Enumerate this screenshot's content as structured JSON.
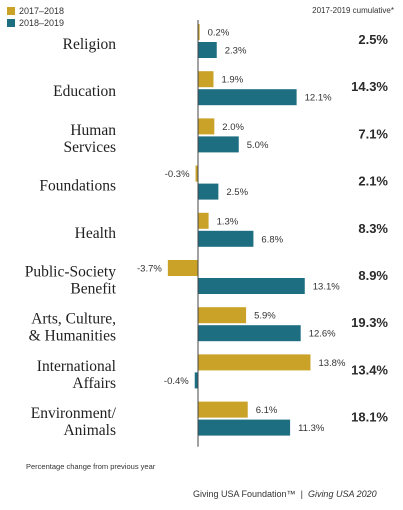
{
  "legend": [
    {
      "label": "2017–2018",
      "color": "#c9a227"
    },
    {
      "label": "2018–2019",
      "color": "#1e6e82"
    }
  ],
  "cumulative_header": "2017-2019 cumulative*",
  "footnote": "Percentage change from previous year",
  "source": {
    "org": "Giving USA Foundation™",
    "separator": "|",
    "publication": "Giving USA 2020"
  },
  "chart_data": {
    "type": "bar",
    "orientation": "horizontal",
    "categories": [
      [
        "Religion"
      ],
      [
        "Education"
      ],
      [
        "Human",
        "Services"
      ],
      [
        "Foundations"
      ],
      [
        "Health"
      ],
      [
        "Public-Society",
        "Benefit"
      ],
      [
        "Arts, Culture,",
        "& Humanities"
      ],
      [
        "International",
        "Affairs"
      ],
      [
        "Environment/",
        "Animals"
      ]
    ],
    "series": [
      {
        "name": "2017–2018",
        "values": [
          0.2,
          1.9,
          2.0,
          -0.3,
          1.3,
          -3.7,
          5.9,
          13.8,
          6.1
        ],
        "labels": [
          "0.2%",
          "1.9%",
          "2.0%",
          "-0.3%",
          "1.3%",
          "-3.7%",
          "5.9%",
          "13.8%",
          "6.1%"
        ]
      },
      {
        "name": "2018–2019",
        "values": [
          2.3,
          12.1,
          5.0,
          2.5,
          6.8,
          13.1,
          12.6,
          -0.4,
          11.3
        ],
        "labels": [
          "2.3%",
          "12.1%",
          "5.0%",
          "2.5%",
          "6.8%",
          "13.1%",
          "12.6%",
          "-0.4%",
          "11.3%"
        ]
      }
    ],
    "cumulative": [
      "2.5%",
      "14.3%",
      "7.1%",
      "2.1%",
      "8.3%",
      "8.9%",
      "19.3%",
      "13.4%",
      "18.1%"
    ]
  }
}
